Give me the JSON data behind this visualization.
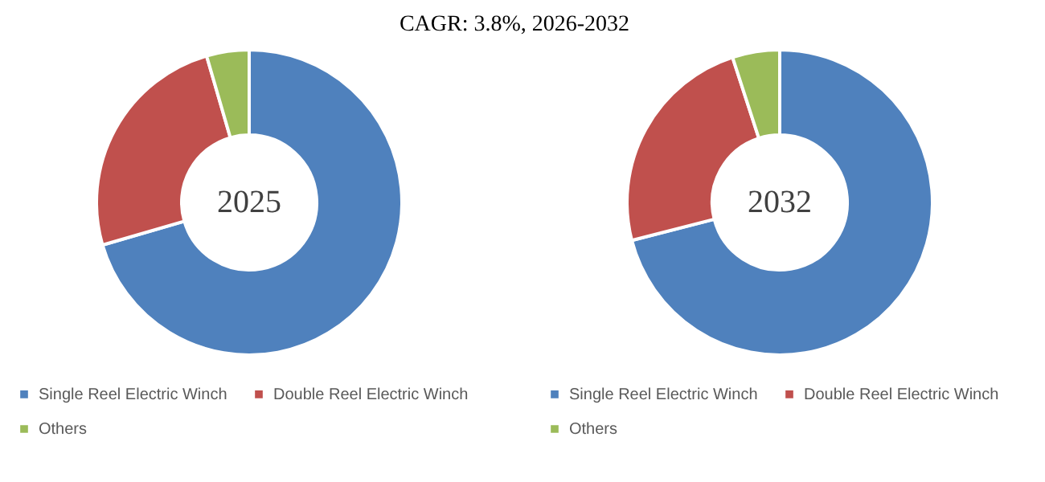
{
  "chart_data": [
    {
      "type": "donut",
      "title": "CAGR:   3.8%, 2026-2032",
      "categories": [
        "Single Reel Electric Winch",
        "Double Reel Electric Winch",
        "Others"
      ],
      "values": [
        70.5,
        25,
        4.5
      ],
      "colors": [
        "#4f81bd",
        "#c0504d",
        "#9bbb59"
      ],
      "annotations": [
        "2025"
      ],
      "legend": "bottom"
    },
    {
      "type": "donut",
      "categories": [
        "Single Reel Electric Winch",
        "Double Reel Electric Winch",
        "Others"
      ],
      "values": [
        71,
        24,
        5
      ],
      "colors": [
        "#4f81bd",
        "#c0504d",
        "#9bbb59"
      ],
      "annotations": [
        "2032"
      ],
      "legend": "bottom"
    }
  ]
}
